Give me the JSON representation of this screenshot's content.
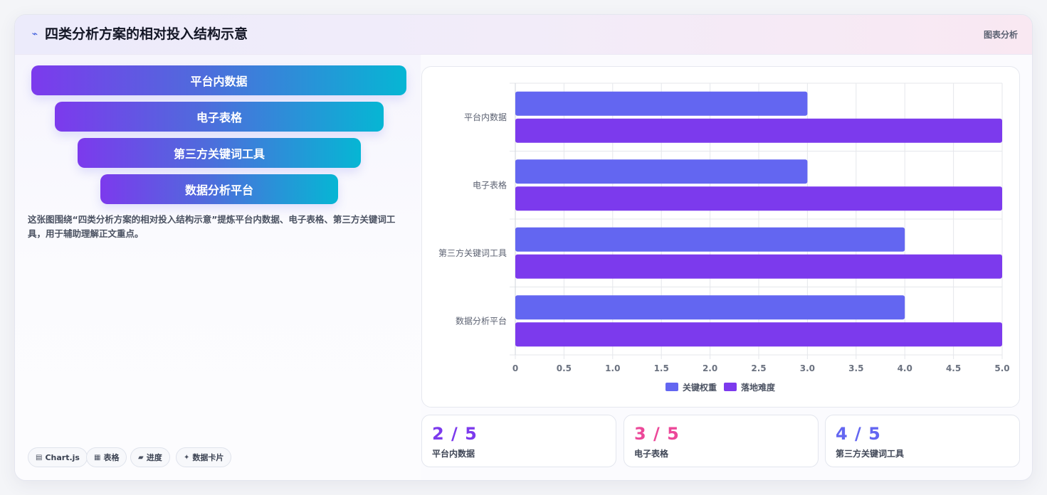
{
  "header": {
    "icon": "chart-line-icon",
    "title": "四类分析方案的相对投入结构示意",
    "tag": "图表分析"
  },
  "funnel": {
    "items": [
      {
        "label": "平台内数据"
      },
      {
        "label": "电子表格"
      },
      {
        "label": "第三方关键词工具"
      },
      {
        "label": "数据分析平台"
      }
    ]
  },
  "description": "这张图围绕“四类分析方案的相对投入结构示意”提炼平台内数据、电子表格、第三方关键词工具，用于辅助理解正文重点。",
  "tags": [
    {
      "icon": "chart-icon",
      "glyph": "▤",
      "label": "Chart.js"
    },
    {
      "icon": "table-icon",
      "glyph": "▦",
      "label": "表格"
    },
    {
      "icon": "progress-icon",
      "glyph": "▰",
      "label": "进度"
    },
    {
      "icon": "sparkle-icon",
      "glyph": "✦",
      "label": "数据卡片"
    }
  ],
  "chart_data": {
    "type": "bar",
    "orientation": "horizontal",
    "categories": [
      "平台内数据",
      "电子表格",
      "第三方关键词工具",
      "数据分析平台"
    ],
    "series": [
      {
        "name": "关键权重",
        "values": [
          3,
          3,
          4,
          4
        ],
        "color": "#6366f1"
      },
      {
        "name": "落地难度",
        "values": [
          5,
          5,
          5,
          5
        ],
        "color": "#7c3aed"
      }
    ],
    "xlim": [
      0,
      5
    ],
    "xticks": [
      "0",
      "0.5",
      "1.0",
      "1.5",
      "2.0",
      "2.5",
      "3.0",
      "3.5",
      "4.0",
      "4.5",
      "5.0"
    ],
    "grid": true,
    "legend": "bottom"
  },
  "stats": [
    {
      "value": "2 / 5",
      "label": "平台内数据",
      "color": "#7c3aed"
    },
    {
      "value": "3 / 5",
      "label": "电子表格",
      "color": "#ec4899"
    },
    {
      "value": "4 / 5",
      "label": "第三方关键词工具",
      "color": "#6366f1"
    }
  ]
}
